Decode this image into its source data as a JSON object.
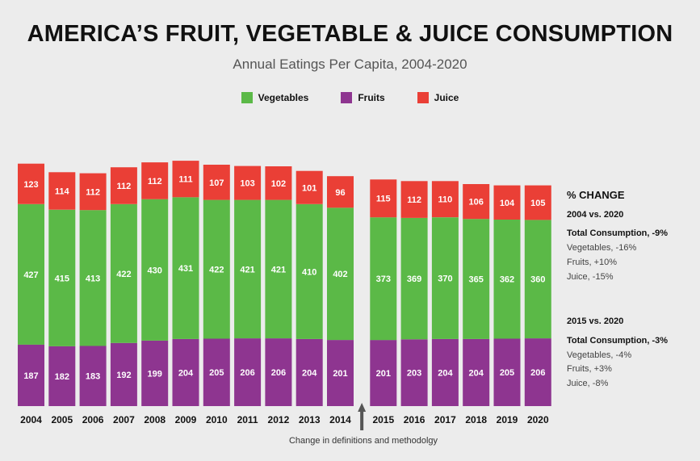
{
  "title": "AMERICA’S FRUIT, VEGETABLE & JUICE CONSUMPTION",
  "subtitle": "Annual Eatings Per Capita, 2004-2020",
  "colors": {
    "vegetables": "#5bb947",
    "fruits": "#8e3590",
    "juice": "#ea3f36"
  },
  "legend": [
    {
      "name": "Vegetables",
      "color": "#5bb947"
    },
    {
      "name": "Fruits",
      "color": "#8e3590"
    },
    {
      "name": "Juice",
      "color": "#ea3f36"
    }
  ],
  "chart_data": {
    "type": "bar",
    "stacked": true,
    "title": "AMERICA’S FRUIT, VEGETABLE & JUICE CONSUMPTION",
    "subtitle": "Annual Eatings Per Capita, 2004-2020",
    "categories": [
      "2004",
      "2005",
      "2006",
      "2007",
      "2008",
      "2009",
      "2010",
      "2011",
      "2012",
      "2013",
      "2014",
      "2015",
      "2016",
      "2017",
      "2018",
      "2019",
      "2020"
    ],
    "series": [
      {
        "name": "Fruits",
        "values": [
          187,
          182,
          183,
          192,
          199,
          204,
          205,
          206,
          206,
          204,
          201,
          201,
          203,
          204,
          204,
          205,
          206
        ]
      },
      {
        "name": "Vegetables",
        "values": [
          427,
          415,
          413,
          422,
          430,
          431,
          422,
          421,
          421,
          410,
          402,
          373,
          369,
          370,
          365,
          362,
          360
        ]
      },
      {
        "name": "Juice",
        "values": [
          123,
          114,
          112,
          112,
          112,
          111,
          107,
          103,
          102,
          101,
          96,
          115,
          112,
          110,
          106,
          104,
          105
        ]
      }
    ],
    "legend_position": "top-center",
    "grid": false,
    "break_after": "2014",
    "annotations": [
      "Change in definitions and methodolgy"
    ]
  },
  "sidebar": {
    "heading": "% CHANGE",
    "group1": {
      "title": "2004 vs. 2020",
      "total": "Total Consumption, -9%",
      "lines": [
        "Vegetables, -16%",
        "Fruits, +10%",
        "Juice, -15%"
      ]
    },
    "group2": {
      "title": "2015 vs. 2020",
      "total": "Total Consumption, -3%",
      "lines": [
        "Vegetables, -4%",
        "Fruits, +3%",
        "Juice, -8%"
      ]
    }
  },
  "note": "Change in definitions and methodolgy"
}
